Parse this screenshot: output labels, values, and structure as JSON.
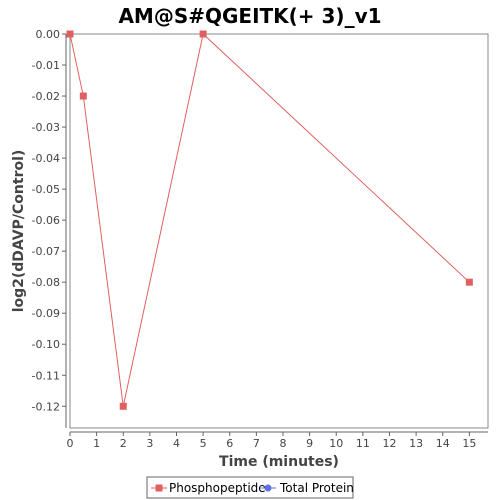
{
  "chart_data": {
    "type": "line",
    "title": "AM@S#QGEITK(+ 3)_v1",
    "xlabel": "Time (minutes)",
    "ylabel": "log2(dDAVP/Control)",
    "xlim": [
      0,
      15.7
    ],
    "ylim": [
      -0.127,
      0.0
    ],
    "x_ticks": [
      0,
      1,
      2,
      3,
      4,
      5,
      6,
      7,
      8,
      9,
      10,
      11,
      12,
      13,
      14,
      15
    ],
    "y_ticks": [
      0.0,
      -0.01,
      -0.02,
      -0.03,
      -0.04,
      -0.05,
      -0.06,
      -0.07,
      -0.08,
      -0.09,
      -0.1,
      -0.11,
      -0.12
    ],
    "y_tick_labels": [
      "0.00",
      "-0.01",
      "-0.02",
      "-0.03",
      "-0.04",
      "-0.05",
      "-0.06",
      "-0.07",
      "-0.08",
      "-0.09",
      "-0.10",
      "-0.11",
      "-0.12"
    ],
    "grid": false,
    "legend_position": "bottom",
    "series": [
      {
        "name": "Phosphopeptide",
        "color": "#e06060",
        "marker": "square",
        "x": [
          0,
          0.5,
          2,
          5,
          15
        ],
        "y": [
          0.0,
          -0.02,
          -0.12,
          0.0,
          -0.08
        ]
      },
      {
        "name": "Total Protein",
        "color": "#6070e0",
        "marker": "circle",
        "x": [],
        "y": []
      }
    ]
  }
}
